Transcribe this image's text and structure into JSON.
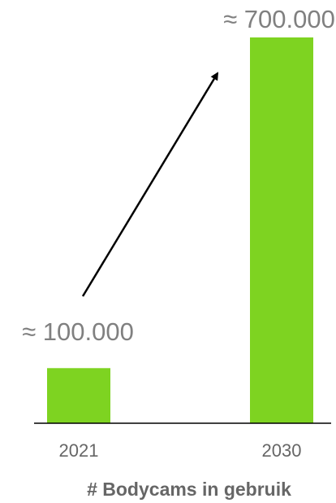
{
  "chart_data": {
    "type": "bar",
    "categories": [
      "2021",
      "2030"
    ],
    "values": [
      100000,
      700000
    ],
    "value_labels": [
      "≈ 100.000",
      "≈ 700.000"
    ],
    "title": "",
    "xlabel": "# Bodycams in gebruik",
    "ylabel": "",
    "ylim": [
      0,
      700000
    ],
    "grid": false,
    "legend": "none",
    "annotation": "arrow pointing from the 2021 value towards the 2030 value",
    "colors": {
      "bar": "#7ed321",
      "axis": "#000000",
      "value_label": "#808080",
      "tick_label": "#666666",
      "arrow": "#000000"
    }
  }
}
